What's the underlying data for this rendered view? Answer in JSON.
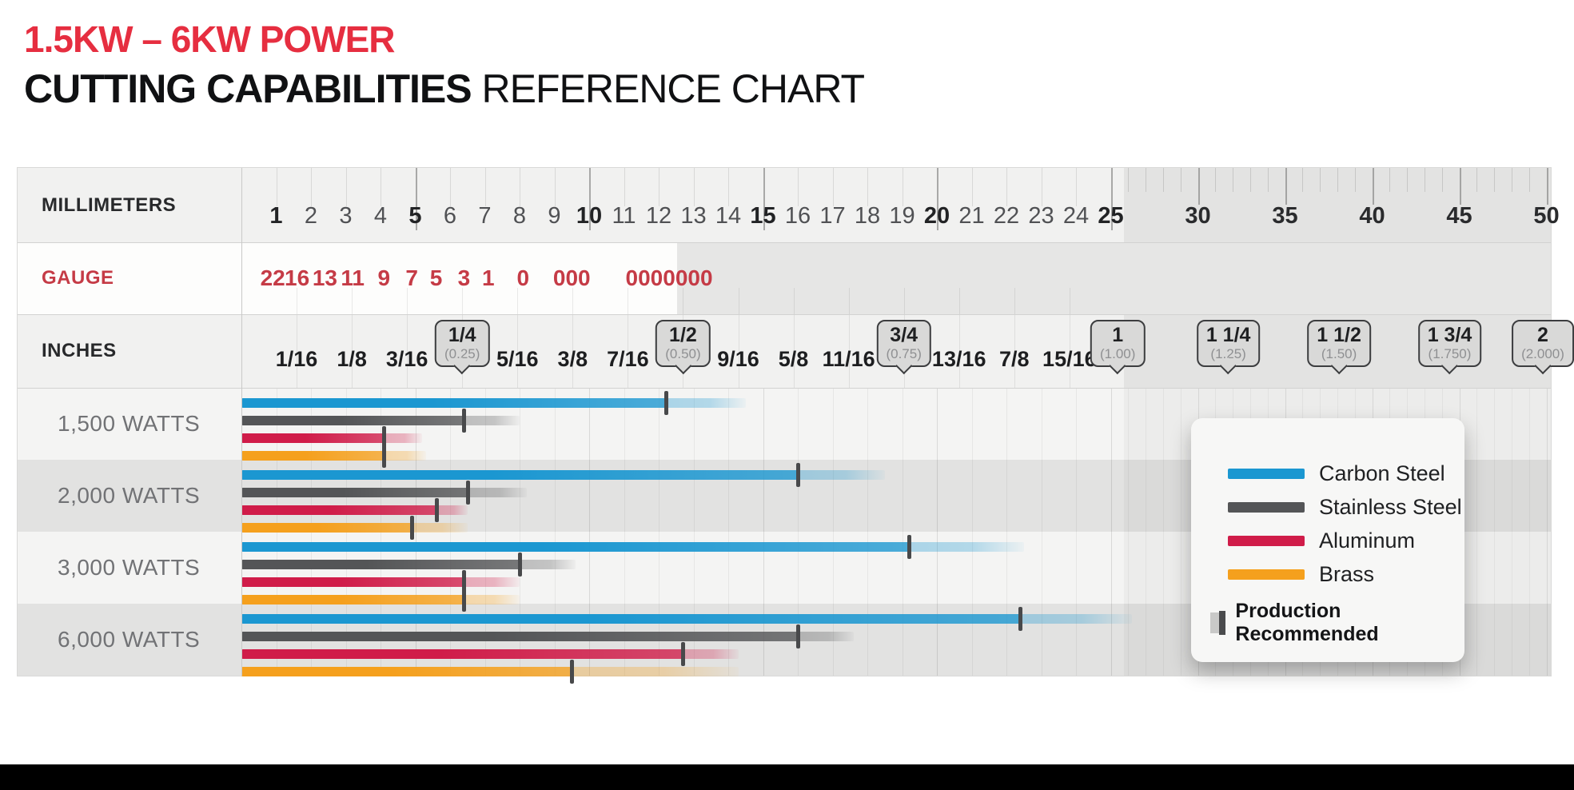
{
  "title": {
    "line1": "1.5KW – 6KW POWER",
    "line2_strong": "CUTTING CAPABILITIES",
    "line2_rest": " REFERENCE CHART"
  },
  "axis_labels": {
    "millimeters": "MILLIMETERS",
    "gauge": "GAUGE",
    "inches": "INCHES"
  },
  "colors": {
    "title_red": "#e62e40",
    "gauge_red": "#c53b46",
    "carbon_steel": "#1b97d1",
    "stainless_steel": "#545557",
    "aluminum": "#d01c49",
    "brass": "#f5a01d",
    "production_tick": "#48494b",
    "row_band": "#e2e2e1",
    "header_gray_zone": "#e3e3e2",
    "bottom_bar": "#000000"
  },
  "chart_data": {
    "type": "bar",
    "orientation": "horizontal-range-bars",
    "unit": "mm",
    "x_axis_mm_ticks": [
      1,
      2,
      3,
      4,
      5,
      6,
      7,
      8,
      9,
      10,
      11,
      12,
      13,
      14,
      15,
      16,
      17,
      18,
      19,
      20,
      21,
      22,
      23,
      24,
      25,
      30,
      35,
      40,
      45,
      50
    ],
    "x_axis_mm_bold_ticks": [
      1,
      5,
      10,
      15,
      20,
      25,
      30,
      35,
      40,
      45,
      50
    ],
    "scale_note": "linear 0-25 mm, compressed 25-50 mm",
    "gauge_ticks": [
      {
        "label": "22",
        "mm": 0.9
      },
      {
        "label": "16",
        "mm": 1.6
      },
      {
        "label": "13",
        "mm": 2.4
      },
      {
        "label": "11",
        "mm": 3.2
      },
      {
        "label": "9",
        "mm": 4.1
      },
      {
        "label": "7",
        "mm": 4.9
      },
      {
        "label": "5",
        "mm": 5.6
      },
      {
        "label": "3",
        "mm": 6.4
      },
      {
        "label": "1",
        "mm": 7.1
      },
      {
        "label": "0",
        "mm": 8.1
      },
      {
        "label": "000",
        "mm": 9.5
      },
      {
        "label": "0000000",
        "mm": 12.3
      }
    ],
    "inch_ticks": [
      {
        "label": "1/16",
        "inch": 0.0625
      },
      {
        "label": "1/8",
        "inch": 0.125
      },
      {
        "label": "3/16",
        "inch": 0.1875
      },
      {
        "label": "5/16",
        "inch": 0.3125
      },
      {
        "label": "3/8",
        "inch": 0.375
      },
      {
        "label": "7/16",
        "inch": 0.4375
      },
      {
        "label": "9/16",
        "inch": 0.5625
      },
      {
        "label": "5/8",
        "inch": 0.625
      },
      {
        "label": "11/16",
        "inch": 0.6875
      },
      {
        "label": "13/16",
        "inch": 0.8125
      },
      {
        "label": "7/8",
        "inch": 0.875
      },
      {
        "label": "15/16",
        "inch": 0.9375
      }
    ],
    "inch_callouts": [
      {
        "label": "1/4",
        "sublabel": "(0.25)",
        "inch": 0.25
      },
      {
        "label": "1/2",
        "sublabel": "(0.50)",
        "inch": 0.5
      },
      {
        "label": "3/4",
        "sublabel": "(0.75)",
        "inch": 0.75
      },
      {
        "label": "1",
        "sublabel": "(1.00)",
        "inch": 1.0
      },
      {
        "label": "1 1/4",
        "sublabel": "(1.25)",
        "inch": 1.25
      },
      {
        "label": "1 1/2",
        "sublabel": "(1.50)",
        "inch": 1.5
      },
      {
        "label": "1 3/4",
        "sublabel": "(1.750)",
        "inch": 1.75
      },
      {
        "label": "2",
        "sublabel": "(2.000)",
        "inch": 2.0
      }
    ],
    "rows": [
      {
        "label": "1,500 WATTS",
        "bars": [
          {
            "material": "Carbon Steel",
            "production_mm": 12.2,
            "max_mm": 14.5
          },
          {
            "material": "Stainless Steel",
            "production_mm": 6.4,
            "max_mm": 8.0
          },
          {
            "material": "Aluminum",
            "production_mm": 4.1,
            "max_mm": 5.2
          },
          {
            "material": "Brass",
            "production_mm": 4.1,
            "max_mm": 5.3
          }
        ]
      },
      {
        "label": "2,000 WATTS",
        "bars": [
          {
            "material": "Carbon Steel",
            "production_mm": 16.0,
            "max_mm": 18.5
          },
          {
            "material": "Stainless Steel",
            "production_mm": 6.5,
            "max_mm": 8.2
          },
          {
            "material": "Aluminum",
            "production_mm": 5.6,
            "max_mm": 6.5
          },
          {
            "material": "Brass",
            "production_mm": 4.9,
            "max_mm": 6.5
          }
        ]
      },
      {
        "label": "3,000 WATTS",
        "bars": [
          {
            "material": "Carbon Steel",
            "production_mm": 19.2,
            "max_mm": 22.5
          },
          {
            "material": "Stainless Steel",
            "production_mm": 8.0,
            "max_mm": 9.6
          },
          {
            "material": "Aluminum",
            "production_mm": 6.4,
            "max_mm": 8.0
          },
          {
            "material": "Brass",
            "production_mm": 6.4,
            "max_mm": 8.0
          }
        ]
      },
      {
        "label": "6,000 WATTS",
        "bars": [
          {
            "material": "Carbon Steel",
            "production_mm": 22.4,
            "max_mm": 26.2
          },
          {
            "material": "Stainless Steel",
            "production_mm": 16.0,
            "max_mm": 17.6
          },
          {
            "material": "Aluminum",
            "production_mm": 12.7,
            "max_mm": 14.3
          },
          {
            "material": "Brass",
            "production_mm": 9.5,
            "max_mm": 14.3
          }
        ]
      }
    ],
    "legend": {
      "items": [
        {
          "label": "Carbon Steel",
          "color": "#1b97d1"
        },
        {
          "label": "Stainless Steel",
          "color": "#545557"
        },
        {
          "label": "Aluminum",
          "color": "#d01c49"
        },
        {
          "label": "Brass",
          "color": "#f5a01d"
        }
      ],
      "production_recommended_label": "Production Recommended"
    }
  }
}
